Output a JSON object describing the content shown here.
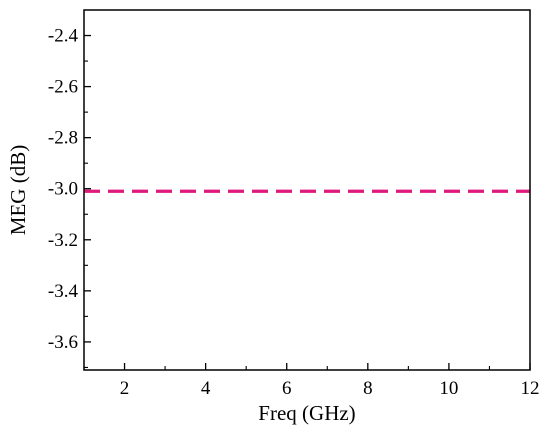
{
  "chart_data": {
    "type": "line",
    "title": "",
    "xlabel": "Freq (GHz)",
    "ylabel": "MEG (dB)",
    "xlim": [
      1,
      12
    ],
    "ylim": [
      -3.71,
      -2.3
    ],
    "xticks": [
      2,
      4,
      6,
      8,
      10,
      12
    ],
    "yticks": [
      -2.4,
      -2.6,
      -2.8,
      -3.0,
      -3.2,
      -3.4,
      -3.6
    ],
    "x_tick_labels": [
      "2",
      "4",
      "6",
      "8",
      "10",
      "12"
    ],
    "y_tick_labels": [
      "-2.4",
      "-2.6",
      "-2.8",
      "-3.0",
      "-3.2",
      "-3.4",
      "-3.6"
    ],
    "grid": false,
    "legend": "none",
    "series": [
      {
        "x": [
          1,
          12
        ],
        "y": [
          -3.01,
          -3.01
        ],
        "color": "#e0197d",
        "line_style": "dashed"
      }
    ]
  }
}
